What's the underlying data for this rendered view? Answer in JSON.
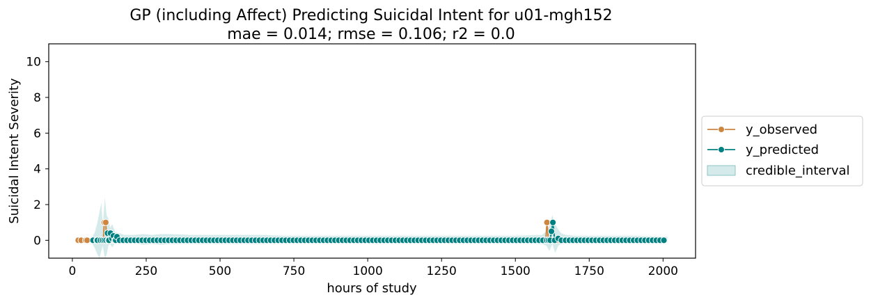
{
  "colors": {
    "observed": "#cd853f",
    "predicted": "#008080",
    "interval": "#b2d8d8"
  },
  "chart_data": {
    "type": "line",
    "title": "GP (including Affect) Predicting Suicidal Intent for u01-mgh152",
    "subtitle": "mae = 0.014; rmse = 0.106; r2 = 0.0",
    "xlabel": "hours of study",
    "ylabel": "Suicidal Intent Severity",
    "xlim": [
      -80,
      2110
    ],
    "ylim": [
      -1,
      11
    ],
    "xticks": [
      0,
      250,
      500,
      750,
      1000,
      1250,
      1500,
      1750,
      2000
    ],
    "yticks": [
      0,
      2,
      4,
      6,
      8,
      10
    ],
    "legend": {
      "placement": "right",
      "entries": [
        "y_observed",
        "y_predicted",
        "credible_interval"
      ]
    },
    "series": [
      {
        "name": "y_observed",
        "points": [
          [
            20,
            0
          ],
          [
            30,
            0
          ],
          [
            45,
            0
          ],
          [
            50,
            0
          ],
          [
            72,
            0
          ],
          [
            85,
            0
          ],
          [
            95,
            0
          ],
          [
            105,
            0
          ],
          [
            108,
            1
          ],
          [
            113,
            1
          ],
          [
            116,
            0
          ],
          [
            120,
            0
          ],
          [
            130,
            0
          ],
          [
            140,
            0
          ],
          [
            150,
            0
          ],
          [
            160,
            0
          ],
          [
            170,
            0
          ],
          [
            1595,
            0
          ],
          [
            1603,
            0
          ],
          [
            1607,
            1
          ],
          [
            1612,
            0
          ],
          [
            1620,
            0
          ],
          [
            1630,
            0
          ],
          [
            1640,
            0
          ]
        ]
      },
      {
        "name": "y_predicted",
        "points": [
          [
            70,
            0
          ],
          [
            85,
            0
          ],
          [
            95,
            0
          ],
          [
            102,
            0
          ],
          [
            108,
            0
          ],
          [
            114,
            0
          ],
          [
            119,
            0.4
          ],
          [
            124,
            0
          ],
          [
            129,
            0.4
          ],
          [
            134,
            0.1
          ],
          [
            139,
            0.25
          ],
          [
            144,
            0
          ],
          [
            151,
            0.2
          ],
          [
            160,
            0
          ],
          [
            1612,
            0
          ],
          [
            1618,
            0
          ],
          [
            1622,
            0.5
          ],
          [
            1627,
            1
          ],
          [
            1633,
            0
          ],
          [
            1645,
            0.1
          ],
          [
            1656,
            0
          ]
        ],
        "regular": {
          "start": 70,
          "end": 2015,
          "step": 12.8
        }
      }
    ],
    "credible_interval": [
      [
        60,
        0,
        0
      ],
      [
        75,
        -0.4,
        0.4
      ],
      [
        85,
        -0.8,
        1.0
      ],
      [
        92,
        -1.0,
        1.6
      ],
      [
        98,
        -0.6,
        2.1
      ],
      [
        103,
        -0.3,
        0.8
      ],
      [
        110,
        -1.0,
        2.4
      ],
      [
        116,
        -0.8,
        1.4
      ],
      [
        122,
        -0.3,
        1.2
      ],
      [
        128,
        -0.2,
        0.7
      ],
      [
        135,
        -0.4,
        0.9
      ],
      [
        145,
        -0.15,
        0.45
      ],
      [
        160,
        -0.2,
        0.4
      ],
      [
        175,
        -0.15,
        0.3
      ],
      [
        190,
        -0.2,
        0.3
      ],
      [
        210,
        -0.15,
        0.3
      ],
      [
        240,
        -0.25,
        0.35
      ],
      [
        270,
        -0.2,
        0.3
      ],
      [
        300,
        -0.25,
        0.35
      ],
      [
        330,
        -0.2,
        0.35
      ],
      [
        400,
        -0.2,
        0.3
      ],
      [
        480,
        -0.2,
        0.3
      ],
      [
        560,
        -0.2,
        0.3
      ],
      [
        640,
        -0.2,
        0.3
      ],
      [
        720,
        -0.15,
        0.25
      ],
      [
        800,
        -0.15,
        0.25
      ],
      [
        900,
        -0.15,
        0.25
      ],
      [
        1000,
        -0.15,
        0.25
      ],
      [
        1100,
        -0.15,
        0.25
      ],
      [
        1200,
        -0.15,
        0.25
      ],
      [
        1300,
        -0.15,
        0.25
      ],
      [
        1400,
        -0.15,
        0.25
      ],
      [
        1500,
        -0.15,
        0.25
      ],
      [
        1590,
        -0.2,
        0.3
      ],
      [
        1605,
        -0.3,
        0.5
      ],
      [
        1615,
        -0.6,
        0.8
      ],
      [
        1625,
        -0.2,
        1.4
      ],
      [
        1635,
        -0.7,
        0.9
      ],
      [
        1645,
        -0.3,
        0.6
      ],
      [
        1655,
        -0.2,
        0.4
      ],
      [
        1670,
        -0.15,
        0.3
      ],
      [
        1700,
        -0.15,
        0.25
      ],
      [
        1800,
        -0.15,
        0.25
      ],
      [
        1900,
        -0.15,
        0.25
      ],
      [
        2015,
        -0.1,
        0.2
      ]
    ]
  }
}
